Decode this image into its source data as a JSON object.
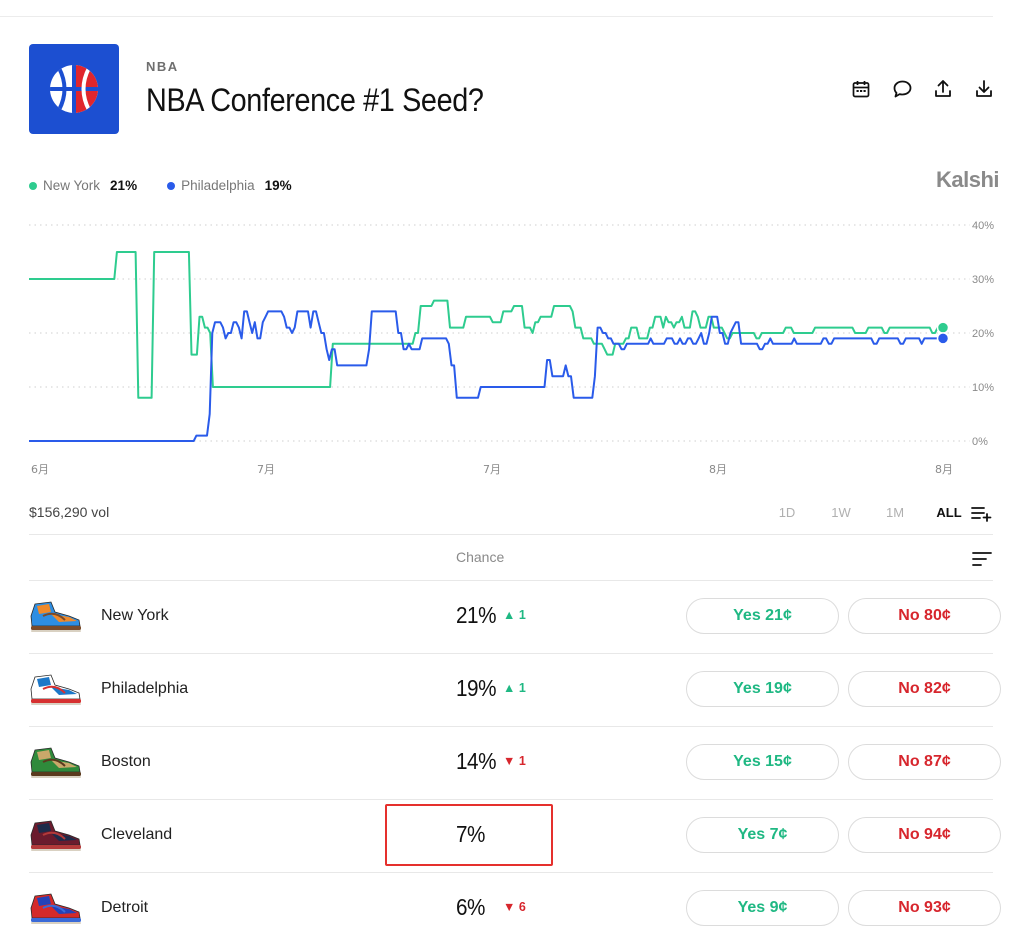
{
  "header": {
    "category": "NBA",
    "title": "NBA Conference #1 Seed?",
    "brand": "Kalshi"
  },
  "actions": [
    {
      "name": "calendar-icon"
    },
    {
      "name": "comment-icon"
    },
    {
      "name": "share-icon"
    },
    {
      "name": "download-icon"
    }
  ],
  "legend": [
    {
      "name": "New York",
      "value": "21%",
      "color": "#2ecc8f"
    },
    {
      "name": "Philadelphia",
      "value": "19%",
      "color": "#2a5bea"
    }
  ],
  "chart_data": {
    "type": "line",
    "x_tick_labels": [
      "6月",
      "7月",
      "7月",
      "8月",
      "8月"
    ],
    "y_tick_labels": [
      "40%",
      "30%",
      "20%",
      "10%",
      "0%"
    ],
    "ylim": [
      0,
      40
    ],
    "grid": true,
    "legend_position": "top-left",
    "series": [
      {
        "name": "New York",
        "color": "#2ecc8f",
        "values": [
          30,
          30,
          30,
          30,
          30,
          30,
          30,
          30,
          30,
          30,
          30,
          30,
          30,
          30,
          30,
          30,
          30,
          30,
          30,
          30,
          30,
          30,
          30,
          30,
          30,
          30,
          30,
          30,
          30,
          30,
          30,
          30,
          30,
          35,
          35,
          35,
          35,
          35,
          35,
          35,
          35,
          8,
          8,
          8,
          8,
          8,
          8,
          35,
          35,
          35,
          35,
          35,
          35,
          35,
          35,
          35,
          35,
          35,
          35,
          35,
          35,
          16,
          16,
          16,
          23,
          23,
          21,
          21,
          20,
          10,
          10,
          10,
          10,
          10,
          10,
          10,
          10,
          10,
          10,
          10,
          10,
          10,
          10,
          10,
          10,
          10,
          10,
          10,
          10,
          10,
          10,
          10,
          10,
          10,
          10,
          10,
          10,
          10,
          10,
          10,
          10,
          10,
          10,
          10,
          10,
          10,
          10,
          10,
          10,
          10,
          10,
          10,
          10,
          10,
          18,
          18,
          18,
          18,
          18,
          18,
          18,
          18,
          18,
          18,
          18,
          18,
          18,
          18,
          18,
          18,
          18,
          18,
          18,
          18,
          18,
          18,
          18,
          18,
          18,
          18,
          18,
          18,
          18,
          18,
          18,
          20,
          20,
          25,
          25,
          25,
          25,
          25,
          26,
          26,
          26,
          26,
          26,
          26,
          21,
          21,
          21,
          21,
          21,
          21,
          23,
          23,
          23,
          23,
          23,
          23,
          23,
          23,
          23,
          23,
          22,
          22,
          22,
          22,
          24,
          24,
          24,
          24,
          25,
          25,
          25,
          25,
          21,
          21,
          21,
          20,
          22,
          22,
          23,
          23,
          23,
          23,
          23,
          25,
          25,
          25,
          25,
          25,
          25,
          25,
          24,
          21,
          21,
          21,
          19,
          19,
          19,
          19,
          18,
          18,
          18,
          18,
          17,
          16,
          16,
          16,
          18,
          18,
          18,
          18,
          19,
          19,
          21,
          21,
          21,
          19,
          19,
          19,
          19,
          21,
          21,
          23,
          23,
          23,
          21,
          23,
          22,
          22,
          21,
          22,
          22,
          23,
          21,
          21,
          21,
          24,
          24,
          23,
          21,
          21,
          21,
          23,
          23,
          21,
          21,
          21,
          21,
          20,
          19,
          19,
          20,
          20,
          20,
          20,
          20,
          20,
          20,
          20,
          20,
          19,
          19,
          20,
          20,
          20,
          20,
          20,
          20,
          20,
          20,
          20,
          21,
          21,
          21,
          20,
          20,
          20,
          20,
          20,
          20,
          20,
          20,
          21,
          21,
          21,
          21,
          21,
          21,
          21,
          21,
          21,
          21,
          21,
          21,
          21,
          21,
          21,
          20,
          20,
          20,
          20,
          20,
          21,
          21,
          21,
          21,
          21,
          21,
          20,
          20,
          21,
          21,
          21,
          21,
          21,
          21,
          21,
          21,
          21,
          21,
          21,
          21,
          21,
          21,
          21,
          21,
          20,
          20,
          21,
          21,
          21
        ]
      },
      {
        "name": "Philadelphia",
        "color": "#2a5bea",
        "values": [
          0,
          0,
          0,
          0,
          0,
          0,
          0,
          0,
          0,
          0,
          0,
          0,
          0,
          0,
          0,
          0,
          0,
          0,
          0,
          0,
          0,
          0,
          0,
          0,
          0,
          0,
          0,
          0,
          0,
          0,
          0,
          0,
          0,
          0,
          0,
          0,
          0,
          0,
          0,
          0,
          0,
          0,
          0,
          0,
          0,
          0,
          0,
          0,
          0,
          0,
          0,
          0,
          0,
          0,
          0,
          0,
          0,
          0,
          0,
          0,
          0,
          0,
          0,
          1,
          1,
          1,
          1,
          1,
          5,
          20,
          22,
          22,
          22,
          21,
          19,
          20,
          20,
          22,
          22,
          21,
          19,
          24,
          24,
          22,
          20,
          22,
          19,
          19,
          22,
          23,
          24,
          24,
          24,
          24,
          24,
          24,
          23,
          21,
          21,
          20,
          21,
          24,
          24,
          24,
          24,
          24,
          21,
          24,
          24,
          22,
          20,
          20,
          17,
          15,
          17,
          17,
          14,
          14,
          14,
          14,
          14,
          14,
          14,
          14,
          14,
          14,
          14,
          14,
          17,
          24,
          24,
          24,
          24,
          24,
          24,
          24,
          24,
          24,
          24,
          20,
          20,
          17,
          17,
          18,
          17,
          17,
          17,
          17,
          19,
          19,
          19,
          19,
          19,
          19,
          19,
          19,
          19,
          19,
          18,
          14,
          14,
          8,
          8,
          8,
          8,
          8,
          8,
          8,
          8,
          8,
          10,
          10,
          10,
          10,
          10,
          10,
          10,
          10,
          10,
          10,
          10,
          10,
          10,
          10,
          10,
          10,
          10,
          10,
          10,
          10,
          10,
          10,
          10,
          10,
          10,
          15,
          15,
          12,
          12,
          12,
          12,
          12,
          14,
          12,
          12,
          8,
          8,
          8,
          8,
          8,
          8,
          8,
          8,
          12,
          21,
          21,
          20,
          20,
          19,
          19,
          18,
          18,
          18,
          17,
          17,
          18,
          18,
          18,
          18,
          18,
          18,
          18,
          18,
          18,
          19,
          18,
          18,
          18,
          18,
          18,
          19,
          19,
          19,
          18,
          18,
          19,
          18,
          18,
          19,
          19,
          18,
          18,
          19,
          20,
          18,
          18,
          20,
          23,
          23,
          23,
          20,
          20,
          18,
          18,
          20,
          21,
          22,
          22,
          18,
          18,
          18,
          18,
          18,
          18,
          18,
          17,
          17,
          18,
          18,
          19,
          18,
          18,
          18,
          18,
          18,
          18,
          18,
          18,
          19,
          18,
          18,
          18,
          18,
          18,
          18,
          18,
          18,
          18,
          18,
          19,
          19,
          18,
          18,
          19,
          19,
          19,
          19,
          19,
          19,
          19,
          19,
          19,
          19,
          19,
          19,
          19,
          19,
          19,
          18,
          18,
          19,
          19,
          19,
          19,
          19,
          19,
          19,
          19,
          18,
          18,
          19,
          19,
          19,
          19,
          19,
          19,
          18,
          19,
          19,
          19,
          19,
          19,
          19,
          19,
          19
        ]
      }
    ]
  },
  "volume": "$156,290 vol",
  "ranges": [
    "1D",
    "1W",
    "1M",
    "ALL"
  ],
  "active_range": "ALL",
  "table": {
    "chance_header": "Chance",
    "rows": [
      {
        "team": "New York",
        "chance": "21%",
        "delta": "1",
        "direction": "up",
        "yes": "Yes 21¢",
        "no": "No 80¢",
        "shoe": [
          "#2e8ee2",
          "#f08a2a",
          "#7a4b2a"
        ]
      },
      {
        "team": "Philadelphia",
        "chance": "19%",
        "delta": "1",
        "direction": "up",
        "yes": "Yes 19¢",
        "no": "No 82¢",
        "shoe": [
          "#ffffff",
          "#1d78c8",
          "#d63030"
        ]
      },
      {
        "team": "Boston",
        "chance": "14%",
        "delta": "1",
        "direction": "down",
        "yes": "Yes 15¢",
        "no": "No 87¢",
        "shoe": [
          "#2f8a3b",
          "#c9a86a",
          "#5a3a1e"
        ]
      },
      {
        "team": "Cleveland",
        "chance": "7%",
        "delta": "",
        "direction": "",
        "yes": "Yes 7¢",
        "no": "No 94¢",
        "shoe": [
          "#6b1b2d",
          "#1e2b4a",
          "#b33a3a"
        ]
      },
      {
        "team": "Detroit",
        "chance": "6%",
        "delta": "6",
        "direction": "down",
        "yes": "Yes 9¢",
        "no": "No 93¢",
        "shoe": [
          "#d42a2a",
          "#2442b8",
          "#3a6ad8"
        ]
      }
    ]
  }
}
